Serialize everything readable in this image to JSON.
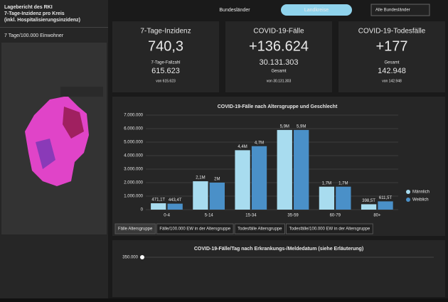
{
  "sidebar": {
    "title_lines": [
      "Lagebericht des RKI",
      "7-Tage-Inzidenz pro Kreis",
      "(inkl. Hospitalisierungsinzidenz)"
    ],
    "map_label": "7 Tage/100.000 Einwohner"
  },
  "toolbar": {
    "tab_left": "Bundesländer",
    "tab_active": "Landkreise",
    "dropdown": "Alle Bundesländer"
  },
  "cards": [
    {
      "title": "7-Tage-Inzidenz",
      "value": "740,3",
      "sublabel": "7-Tage-Fallzahl",
      "subvalue": "615.623",
      "note": "von 615.623"
    },
    {
      "title": "COVID-19-Fälle",
      "value": "+136.624",
      "subvalue": "30.131.303",
      "sublabel": "Gesamt",
      "note": "von 30.131.303"
    },
    {
      "title": "COVID-19-Todesfälle",
      "value": "+177",
      "sublabel": "Gesamt",
      "subvalue": "142.948",
      "note": "von 142.948"
    }
  ],
  "chart_data": {
    "type": "bar",
    "title": "COVID-19-Fälle nach Altersgruppe und Geschlecht",
    "categories": [
      "0-4",
      "5-14",
      "15-34",
      "35-59",
      "60-79",
      "80+"
    ],
    "series": [
      {
        "name": "Männlich",
        "color": "#a8dcef",
        "values": [
          471100,
          2100000,
          4400000,
          5900000,
          1700000,
          398500
        ],
        "value_labels": [
          "471,1T",
          "2,1M",
          "4,4M",
          "5,9M",
          "1,7M",
          "398,5T"
        ]
      },
      {
        "name": "Weiblich",
        "color": "#4a90c8",
        "values": [
          443400,
          2000000,
          4700000,
          5900000,
          1700000,
          611500
        ],
        "value_labels": [
          "443,4T",
          "2M",
          "4,7M",
          "5,9M",
          "1,7M",
          "611,5T"
        ]
      }
    ],
    "ylim": [
      0,
      7000000
    ],
    "yticks": [
      0,
      {
        "value": 1000000,
        "label": "1.000.000"
      },
      {
        "value": 2000000,
        "label": "2.000.000"
      },
      {
        "value": 3000000,
        "label": "3.000.000"
      },
      {
        "value": 4000000,
        "label": "4.000.000"
      },
      {
        "value": 5000000,
        "label": "5.000.000"
      },
      {
        "value": 6000000,
        "label": "6.000.000"
      },
      {
        "value": 7000000,
        "label": "7.000.000"
      }
    ],
    "grid": true
  },
  "chart_tabs": [
    "Fälle Altersgruppe",
    "Fälle/100.000 EW in der Altersgruppe",
    "Todesfälle Altersgruppe",
    "Todesfälle/100.000 EW in der Altersgruppe"
  ],
  "daily_chart": {
    "title": "COVID-19-Fälle/Tag nach Erkrankungs-/Meldedatum (siehe Erläuterung)",
    "top_tick": "350.000"
  }
}
